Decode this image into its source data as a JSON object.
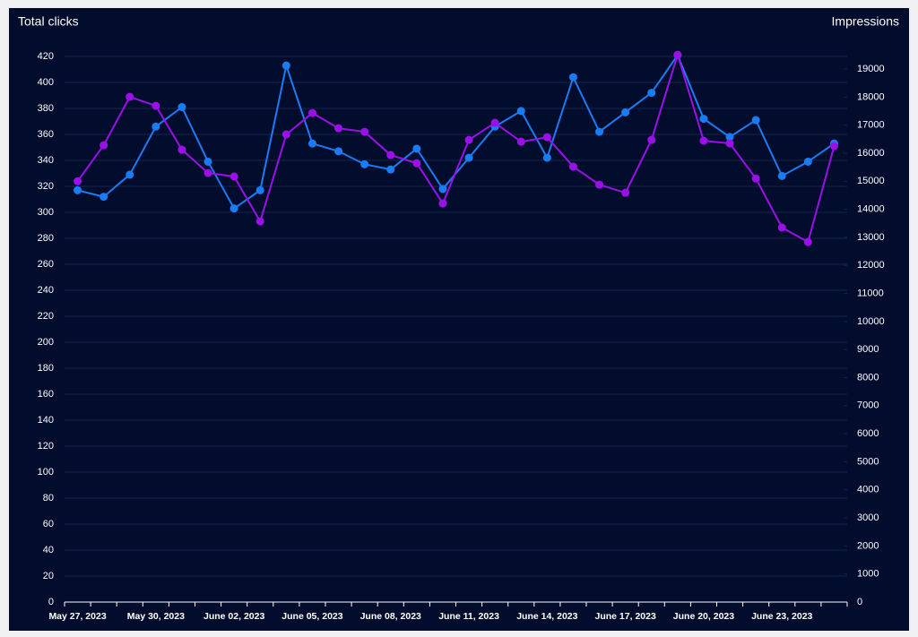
{
  "chart_data": {
    "type": "line",
    "categories": [
      "May 27, 2023",
      null,
      null,
      "May 30, 2023",
      null,
      null,
      "June 02, 2023",
      null,
      null,
      "June 05, 2023",
      null,
      null,
      "June 08, 2023",
      null,
      null,
      "June 11, 2023",
      null,
      null,
      "June 14, 2023",
      null,
      null,
      "June 17, 2023",
      null,
      null,
      "June 20, 2023",
      null,
      null,
      "June 23, 2023",
      null,
      null
    ],
    "series": [
      {
        "name": "Total clicks",
        "color": "#1a7cf5",
        "values": [
          317,
          312,
          329,
          366,
          381,
          339,
          303,
          317,
          413,
          353,
          347,
          337,
          333,
          349,
          318,
          342,
          366,
          378,
          342,
          404,
          362,
          377,
          392,
          421,
          372,
          358,
          371,
          328,
          339,
          353
        ]
      },
      {
        "name": "Impressions",
        "color": "#9b10e8",
        "axis": "y2",
        "values": [
          15000,
          16285,
          18010,
          17690,
          16125,
          15295,
          15170,
          13570,
          16670,
          17435,
          16890,
          16765,
          15935,
          15645,
          14210,
          16475,
          17085,
          16410,
          16570,
          15520,
          14880,
          14590,
          16475,
          19510,
          16445,
          16350,
          15100,
          13350,
          12835,
          16255
        ]
      }
    ],
    "ylim": [
      0,
      420
    ],
    "yticks": [
      0,
      20,
      40,
      60,
      80,
      100,
      120,
      140,
      160,
      180,
      200,
      220,
      240,
      260,
      280,
      300,
      320,
      340,
      360,
      380,
      400,
      420
    ],
    "y2lim": [
      0,
      19450
    ],
    "y2ticks": [
      0,
      1000,
      2000,
      3000,
      4000,
      5000,
      6000,
      7000,
      8000,
      9000,
      10000,
      11000,
      12000,
      13000,
      14000,
      15000,
      16000,
      17000,
      18000,
      19000
    ],
    "grid": true
  }
}
